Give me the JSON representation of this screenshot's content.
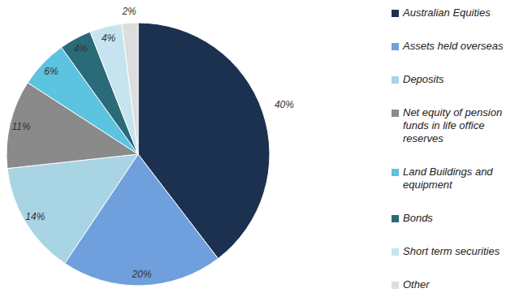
{
  "chart_data": {
    "type": "pie",
    "categories": [
      "Australian Equities",
      "Assets held overseas",
      "Deposits",
      "Net equity of pension funds in life office reserves",
      "Land Buildings and equipment",
      "Bonds",
      "Short term securities",
      "Other"
    ],
    "values": [
      40,
      20,
      14,
      11,
      6,
      4,
      4,
      2
    ],
    "value_labels": [
      "40%",
      "20%",
      "14%",
      "11%",
      "6%",
      "4%",
      "4%",
      "2%"
    ],
    "colors": [
      "#1c3150",
      "#6f9fdc",
      "#a8d4e4",
      "#8a8a8a",
      "#5cc3e0",
      "#2b6a78",
      "#c6e4ef",
      "#dddddd"
    ],
    "data_labels": true,
    "legend": "right"
  }
}
